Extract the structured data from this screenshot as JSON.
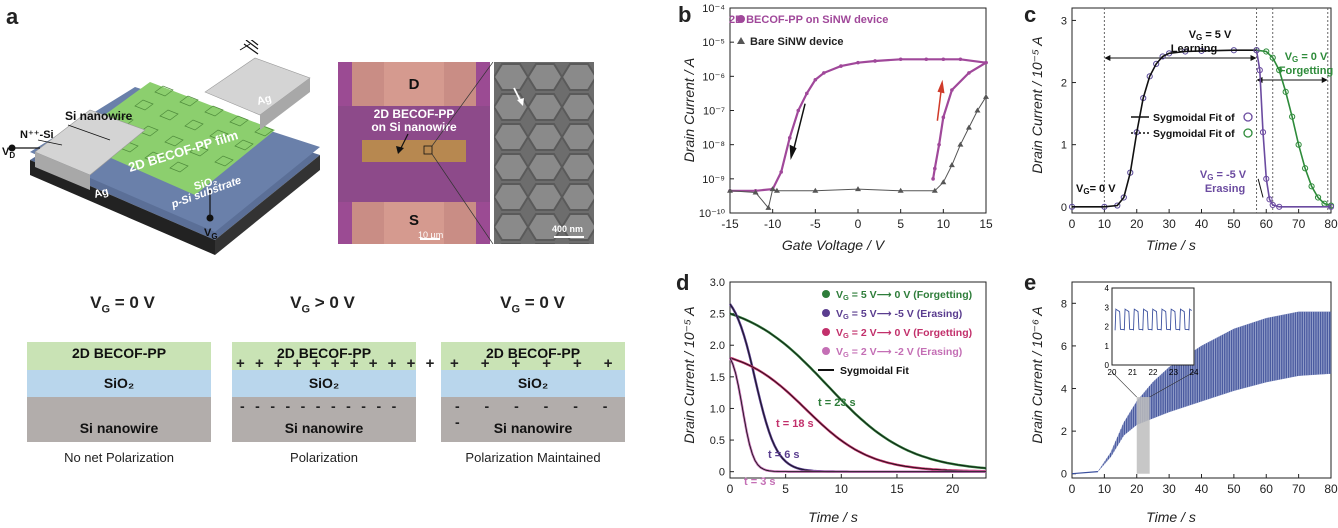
{
  "panel_a": {
    "label": "a",
    "device": {
      "si_nanowire": "Si nanowire",
      "n_si": "N⁺⁺-Si",
      "film": "2D BECOF-PP film",
      "ag_left": "Ag",
      "ag_right": "Ag",
      "sio2": "SiO₂",
      "substrate": "p-Si substrate",
      "vd": "V",
      "vd_sub": "D",
      "vg": "V",
      "vg_sub": "G"
    },
    "micrograph": {
      "d": "D",
      "s": "S",
      "label_line1": "2D BECOF-PP",
      "label_line2": "on Si nanowire",
      "scale1": "10 µm",
      "scale2": "400 nm"
    },
    "states": [
      {
        "vg": "V",
        "vg_sub": "G",
        "vg_tail": " = 0 V",
        "top": "2D BECOF-PP",
        "mid": "SiO₂",
        "bot": "Si nanowire",
        "caption": "No net Polarization"
      },
      {
        "vg": "V",
        "vg_sub": "G",
        "vg_tail": " > 0 V",
        "top": "2D BECOF-PP",
        "mid": "SiO₂",
        "bot": "Si nanowire",
        "caption": "Polarization"
      },
      {
        "vg": "V",
        "vg_sub": "G",
        "vg_tail": " = 0 V",
        "top": "2D BECOF-PP",
        "mid": "SiO₂",
        "bot": "Si nanowire",
        "caption": "Polarization Maintained"
      }
    ],
    "colors": {
      "cof": "#c9e3b5",
      "sio2": "#b9d6ec",
      "si": "#b2adab",
      "film": "#8ccf6e",
      "ag": "#c6c6c6"
    }
  },
  "chart_data": [
    {
      "id": "b",
      "label": "b",
      "type": "line",
      "xlabel": "Gate Voltage / V",
      "ylabel": "Drain Current / A",
      "xlim": [
        -15,
        15
      ],
      "xticks": [
        -15,
        -10,
        -5,
        0,
        5,
        10,
        15
      ],
      "ylim_log10": [
        -10,
        -4
      ],
      "yticks": [
        "10⁻¹⁰",
        "10⁻⁹",
        "10⁻⁸",
        "10⁻⁷",
        "10⁻⁶",
        "10⁻⁵",
        "10⁻⁴"
      ],
      "yscale": "log",
      "legend": [
        "2D BECOF-PP on SiNW device",
        "Bare SiNW device"
      ],
      "series": [
        {
          "name": "2D BECOF-PP on SiNW device",
          "color": "#a0489a",
          "x": [
            -15,
            -12,
            -10,
            -9,
            -8,
            -7,
            -6,
            -5,
            -4,
            -2,
            0,
            2,
            5,
            8,
            10,
            12,
            15
          ],
          "y_log10": [
            -9.35,
            -9.35,
            -9.3,
            -8.8,
            -7.8,
            -7.0,
            -6.5,
            -6.1,
            -5.9,
            -5.7,
            -5.6,
            -5.55,
            -5.5,
            -5.5,
            -5.5,
            -5.5,
            -5.6
          ]
        },
        {
          "name": "2D BECOF-PP on SiNW device",
          "color": "#a0489a",
          "x": [
            15,
            13,
            11,
            10,
            9.5,
            9,
            8.8
          ],
          "y_log10": [
            -5.6,
            -5.9,
            -6.4,
            -7.2,
            -8.0,
            -8.7,
            -9.0
          ]
        },
        {
          "name": "Bare SiNW device",
          "color": "#555555",
          "x": [
            -15,
            -12,
            -10.5,
            -10,
            -9.5,
            -5,
            0,
            5,
            9,
            10,
            11,
            12,
            13,
            14,
            15
          ],
          "y_log10": [
            -9.35,
            -9.4,
            -9.85,
            -9.3,
            -9.35,
            -9.35,
            -9.3,
            -9.35,
            -9.35,
            -9.1,
            -8.6,
            -8.0,
            -7.5,
            -7.0,
            -6.6
          ]
        }
      ]
    },
    {
      "id": "c",
      "label": "c",
      "type": "line",
      "xlabel": "Time / s",
      "ylabel": "Drain Current / 10⁻⁵ A",
      "xlim": [
        0,
        80
      ],
      "xticks": [
        0,
        10,
        20,
        30,
        40,
        50,
        60,
        70,
        80
      ],
      "ylim": [
        -0.1,
        3.2
      ],
      "yticks": [
        0,
        1,
        2,
        3
      ],
      "annotations": {
        "learning": "V",
        "learning_sub": "G",
        "learning_tail": " = 5 V",
        "learning_word": "Learning",
        "forgetting": "V",
        "forgetting_sub": "G",
        "forgetting_tail": " = 0 V",
        "forgetting_word": "Forgetting",
        "erasing": "V",
        "erasing_sub": "G",
        "erasing_tail": " = -5 V",
        "erasing_word": "Erasing",
        "zero": "V",
        "zero_sub": "G",
        "zero_tail": "= 0 V"
      },
      "legend": [
        "Sygmoidal Fit of",
        "Sygmoidal Fit of"
      ],
      "series": [
        {
          "name": "rise",
          "color": "#1f1f60",
          "x": [
            0,
            10,
            14,
            16,
            18,
            20,
            22,
            24,
            26,
            28,
            30,
            35,
            40,
            50,
            57
          ],
          "y": [
            0,
            0,
            0.02,
            0.15,
            0.55,
            1.2,
            1.75,
            2.1,
            2.3,
            2.42,
            2.47,
            2.5,
            2.51,
            2.52,
            2.52
          ]
        },
        {
          "name": "forgetting",
          "color": "#2e8b3a",
          "x": [
            57,
            60,
            62,
            64,
            66,
            68,
            70,
            72,
            74,
            76,
            78,
            80
          ],
          "y": [
            2.52,
            2.5,
            2.4,
            2.2,
            1.85,
            1.45,
            1.0,
            0.62,
            0.33,
            0.15,
            0.05,
            0.02
          ]
        },
        {
          "name": "erasing",
          "color": "#6b4ba0",
          "x": [
            57,
            58,
            59,
            60,
            61,
            62,
            64,
            80
          ],
          "y": [
            2.52,
            2.2,
            1.2,
            0.45,
            0.12,
            0.03,
            0,
            0
          ]
        }
      ]
    },
    {
      "id": "d",
      "label": "d",
      "type": "line",
      "xlabel": "Time / s",
      "ylabel": "Drain Current / 10⁻⁵ A",
      "xlim": [
        0,
        23
      ],
      "xticks": [
        0,
        5,
        10,
        15,
        20
      ],
      "ylim": [
        -0.1,
        3.0
      ],
      "yticks": [
        "0",
        "0.5",
        "1.0",
        "1.5",
        "2.0",
        "2.5",
        "3.0"
      ],
      "legend": [
        {
          "pre": "V",
          "sub": "G",
          "text": " = 5 V⟶ 0 V (Forgetting)",
          "color": "#2e7d3a"
        },
        {
          "pre": "V",
          "sub": "G",
          "text": " = 5 V⟶ -5 V (Erasing)",
          "color": "#5a3d8f"
        },
        {
          "pre": "V",
          "sub": "G",
          "text": " = 2 V⟶ 0 V (Forgetting)",
          "color": "#c2306b"
        },
        {
          "pre": "V",
          "sub": "G",
          "text": " = 2 V⟶ -2 V (Erasing)",
          "color": "#c46fb5"
        },
        {
          "pre": "",
          "sub": "",
          "text": "Sygmoidal Fit",
          "color": "#111111"
        }
      ],
      "annotations": [
        "t = 23 s",
        "t = 18 s",
        "t = 6 s",
        "t = 3 s"
      ],
      "series": [
        {
          "name": "V_G = 5 V -> 0 V (Forgetting)",
          "color": "#2e7d3a",
          "tau": 23,
          "y0": 2.5
        },
        {
          "name": "V_G = 5 V -> -5 V (Erasing)",
          "color": "#5a3d8f",
          "tau": 6,
          "y0": 2.65
        },
        {
          "name": "V_G = 2 V -> 0 V (Forgetting)",
          "color": "#c2306b",
          "tau": 18,
          "y0": 1.8
        },
        {
          "name": "V_G = 2 V -> -2 V (Erasing)",
          "color": "#c46fb5",
          "tau": 3,
          "y0": 1.8
        }
      ]
    },
    {
      "id": "e",
      "label": "e",
      "type": "area",
      "xlabel": "Time / s",
      "ylabel": "Drain Current / 10⁻⁶ A",
      "xlim": [
        0,
        80
      ],
      "xticks": [
        0,
        10,
        20,
        30,
        40,
        50,
        60,
        70,
        80
      ],
      "ylim": [
        -0.2,
        9
      ],
      "yticks": [
        0,
        2,
        4,
        6,
        8
      ],
      "color": "#3a4f9e",
      "envelope_upper": {
        "x": [
          0,
          8,
          12,
          16,
          20,
          25,
          30,
          40,
          50,
          60,
          70,
          80
        ],
        "y": [
          0,
          0.1,
          1.0,
          2.4,
          3.4,
          4.3,
          5.0,
          6.0,
          6.8,
          7.3,
          7.6,
          7.6
        ]
      },
      "envelope_lower": {
        "x": [
          0,
          8,
          12,
          16,
          20,
          25,
          30,
          40,
          50,
          60,
          70,
          80
        ],
        "y": [
          0,
          0.1,
          0.8,
          1.8,
          2.3,
          2.6,
          2.9,
          3.4,
          3.9,
          4.3,
          4.6,
          4.7
        ]
      },
      "inset": {
        "xlim": [
          20,
          24
        ],
        "xticks": [
          20,
          21,
          22,
          23,
          24
        ],
        "ylim": [
          0,
          4
        ],
        "yticks": [
          0,
          1,
          2,
          3,
          4
        ],
        "highlight": [
          20,
          24
        ]
      }
    }
  ]
}
